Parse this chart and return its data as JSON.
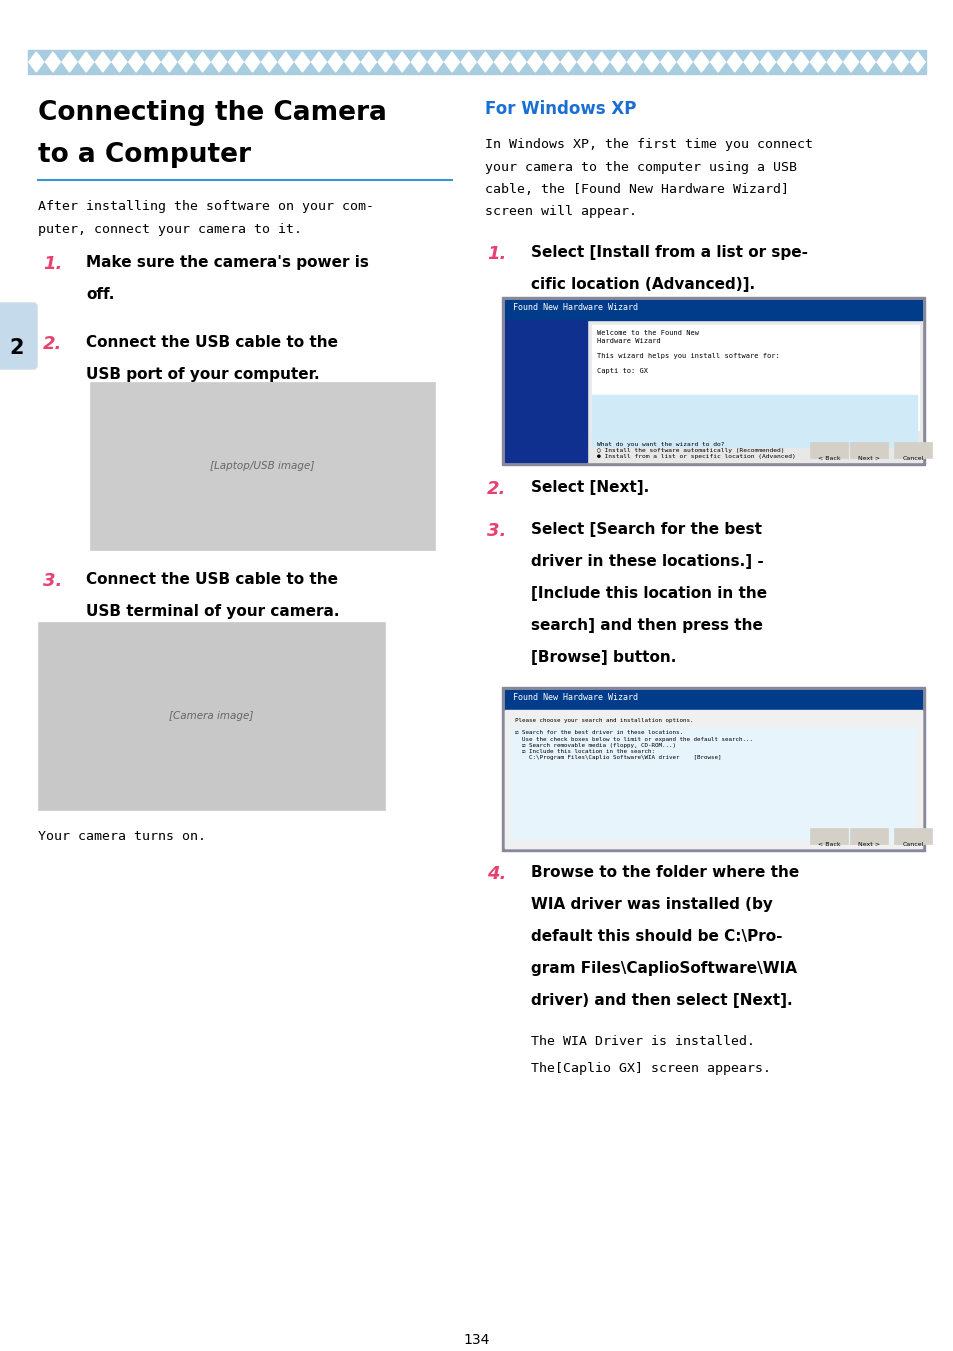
{
  "page_width": 9.54,
  "page_height": 13.51,
  "bg_color": "#ffffff",
  "header_bar_color": "#a8cce0",
  "title_line1": "Connecting the Camera",
  "title_line2": "to a Computer",
  "title_fontsize": 19,
  "divider_color": "#3399cc",
  "section_title": "For Windows XP",
  "section_title_color": "#1a6fd4",
  "section_title_fontsize": 12,
  "tab_number": "2",
  "tab_color": "#c5daea",
  "footer_page": "134",
  "step_color": "#e84070",
  "intro_fontsize": 9.5,
  "step_num_fontsize": 13,
  "step_text_fontsize": 11,
  "note_fontsize": 9.5,
  "intro_left_lines": [
    "After installing the software on your com-",
    "puter, connect your camera to it."
  ],
  "intro_right_lines": [
    "In Windows XP, the first time you connect",
    "your camera to the computer using a USB",
    "cable, the [Found New Hardware Wizard]",
    "screen will appear."
  ],
  "note_left": "Your camera turns on.",
  "note_right1": "The WIA Driver is installed.",
  "note_right2": "The[Caplio GX] screen appears."
}
